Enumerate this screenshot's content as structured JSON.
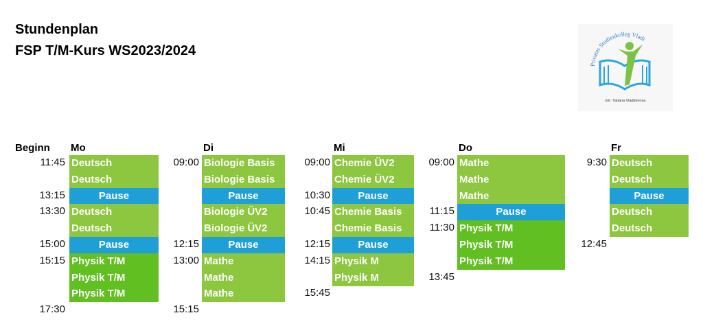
{
  "header": {
    "title": "Stundenplan",
    "subtitle": "FSP T/M-Kurs WS2023/2024"
  },
  "logo": {
    "name": "Privates Studienkolleg Vladi",
    "owner": "Inh. Tatiana Vladimirova"
  },
  "time_header": "Beginn",
  "days": [
    {
      "name": "Mo",
      "slots": [
        {
          "time": "11:45",
          "lesson": "Deutsch",
          "color": "#8dc63f"
        },
        {
          "lesson": "Deutsch",
          "color": "#8dc63f"
        },
        {
          "time": "13:15",
          "lesson": "Pause",
          "color": "#1e9fd8"
        },
        {
          "time": "13:30",
          "lesson": "Deutsch",
          "color": "#8dc63f"
        },
        {
          "lesson": "Deutsch",
          "color": "#8dc63f"
        },
        {
          "time": "15:00",
          "lesson": "Pause",
          "color": "#1e9fd8"
        },
        {
          "time": "15:15",
          "lesson": "Physik T/M",
          "color": "#62bf22"
        },
        {
          "lesson": "Physik T/M",
          "color": "#62bf22"
        },
        {
          "lesson": "Physik T/M",
          "color": "#62bf22"
        },
        {
          "time": "17:30"
        }
      ]
    },
    {
      "name": "Di",
      "slots": [
        {
          "time": "09:00",
          "lesson": "Biologie Basis",
          "color": "#8dc63f"
        },
        {
          "lesson": "Biologie Basis",
          "color": "#8dc63f"
        },
        {
          "lesson": "Pause",
          "color": "#1e9fd8"
        },
        {
          "lesson": "Biologie ÜV2",
          "color": "#8dc63f"
        },
        {
          "lesson": "Biologie ÜV2",
          "color": "#8dc63f"
        },
        {
          "time": "12:15",
          "lesson": "Pause",
          "color": "#1e9fd8"
        },
        {
          "time": "13:00",
          "lesson": "Mathe",
          "color": "#8dc63f"
        },
        {
          "lesson": "Mathe",
          "color": "#8dc63f"
        },
        {
          "lesson": "Mathe",
          "color": "#8dc63f"
        },
        {
          "time": "15:15"
        }
      ]
    },
    {
      "name": "Mi",
      "slots": [
        {
          "time": "09:00",
          "lesson": "Chemie ÜV2",
          "color": "#8dc63f"
        },
        {
          "lesson": "Chemie ÜV2",
          "color": "#8dc63f"
        },
        {
          "time": "10:30",
          "lesson": "Pause",
          "color": "#1e9fd8"
        },
        {
          "time": "10:45",
          "lesson": "Chemie Basis",
          "color": "#8dc63f"
        },
        {
          "lesson": "Chemie Basis",
          "color": "#8dc63f"
        },
        {
          "time": "12:15",
          "lesson": "Pause",
          "color": "#1e9fd8"
        },
        {
          "time": "14:15",
          "lesson": "Physik M",
          "color": "#8dc63f"
        },
        {
          "lesson": "Physik M",
          "color": "#8dc63f"
        },
        {
          "time": "15:45"
        },
        null
      ]
    },
    {
      "name": "Do",
      "slots": [
        {
          "time": "09:00",
          "lesson": "Mathe",
          "color": "#8dc63f"
        },
        {
          "lesson": "Mathe",
          "color": "#8dc63f"
        },
        {
          "lesson": "Mathe",
          "color": "#8dc63f"
        },
        {
          "time": "11:15",
          "lesson": "Pause",
          "color": "#1e9fd8"
        },
        {
          "time": "11:30",
          "lesson": "Physik T/M",
          "color": "#62bf22"
        },
        {
          "lesson": "Physik T/M",
          "color": "#62bf22"
        },
        {
          "lesson": "Physik T/M",
          "color": "#62bf22"
        },
        {
          "time": "13:45"
        },
        null,
        null
      ]
    },
    {
      "name": "Fr",
      "slots": [
        {
          "time": "9:30",
          "lesson": "Deutsch",
          "color": "#8dc63f"
        },
        {
          "lesson": "Deutsch",
          "color": "#8dc63f"
        },
        {
          "lesson": "Pause",
          "color": "#1e9fd8"
        },
        {
          "lesson": "Deutsch",
          "color": "#8dc63f"
        },
        {
          "lesson": "Deutsch",
          "color": "#8dc63f"
        },
        {
          "time": "12:45"
        },
        null,
        null,
        null,
        null
      ]
    }
  ]
}
